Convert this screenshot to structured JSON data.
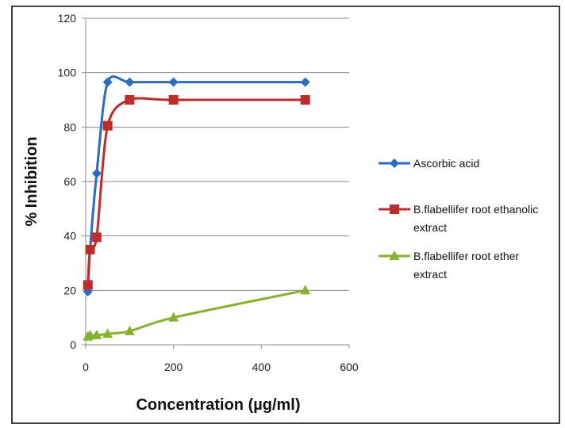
{
  "chart_data": {
    "type": "line",
    "title": "",
    "xlabel": "Concentration (µg/ml)",
    "ylabel": "% Inhibition",
    "xlim": [
      0,
      600
    ],
    "ylim": [
      0,
      120
    ],
    "xticks": [
      "0",
      "200",
      "400",
      "600"
    ],
    "yticks": [
      "0",
      "20",
      "40",
      "60",
      "80",
      "100",
      "120"
    ],
    "grid": "horizontal",
    "legend_position": "right",
    "series": [
      {
        "name": "Ascorbic acid",
        "legend_lines": [
          "Ascorbic acid"
        ],
        "color": "#2e6bbf",
        "marker": "diamond",
        "x": [
          5,
          10,
          25,
          50,
          100,
          200,
          500
        ],
        "y": [
          19.5,
          35,
          63,
          96.5,
          96.5,
          96.5,
          96.5
        ]
      },
      {
        "name": "B.flabellifer root ethanolic extract",
        "legend_lines": [
          "B.flabellifer root ethanolic",
          "extract"
        ],
        "color": "#be2b2b",
        "marker": "square",
        "x": [
          5,
          10,
          25,
          50,
          100,
          200,
          500
        ],
        "y": [
          22,
          35,
          39.5,
          80.5,
          90,
          90,
          90
        ]
      },
      {
        "name": "B.flabellifer root ether extract",
        "legend_lines": [
          "B.flabellifer root ether",
          "extract"
        ],
        "color": "#86b22f",
        "marker": "triangle",
        "x": [
          5,
          10,
          25,
          50,
          100,
          200,
          500
        ],
        "y": [
          3,
          3.5,
          3.5,
          4,
          5,
          10,
          20
        ]
      }
    ]
  }
}
